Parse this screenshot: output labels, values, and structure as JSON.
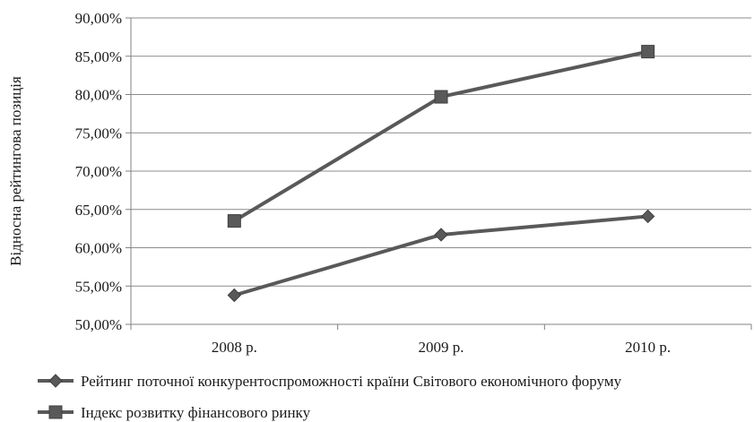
{
  "chart_data": {
    "type": "line",
    "categories": [
      "2008 р.",
      "2009 р.",
      "2010 р."
    ],
    "ylabel": "Відносна рейтингова позиція",
    "xlabel": "",
    "ylim": [
      0.5,
      0.9
    ],
    "ytick_step": 0.05,
    "ytick_labels": [
      "50,00%",
      "55,00%",
      "60,00%",
      "65,00%",
      "70,00%",
      "75,00%",
      "80,00%",
      "85,00%",
      "90,00%"
    ],
    "grid": true,
    "legend_position": "bottom",
    "series": [
      {
        "name": "Рейтинг поточної конкурентоспроможності країни Світового економічного форуму",
        "values": [
          0.538,
          0.617,
          0.641
        ],
        "marker": "diamond",
        "color": "#595959"
      },
      {
        "name": "Індекс розвитку фінансового ринку",
        "values": [
          0.635,
          0.797,
          0.856
        ],
        "marker": "square",
        "color": "#595959"
      }
    ]
  }
}
